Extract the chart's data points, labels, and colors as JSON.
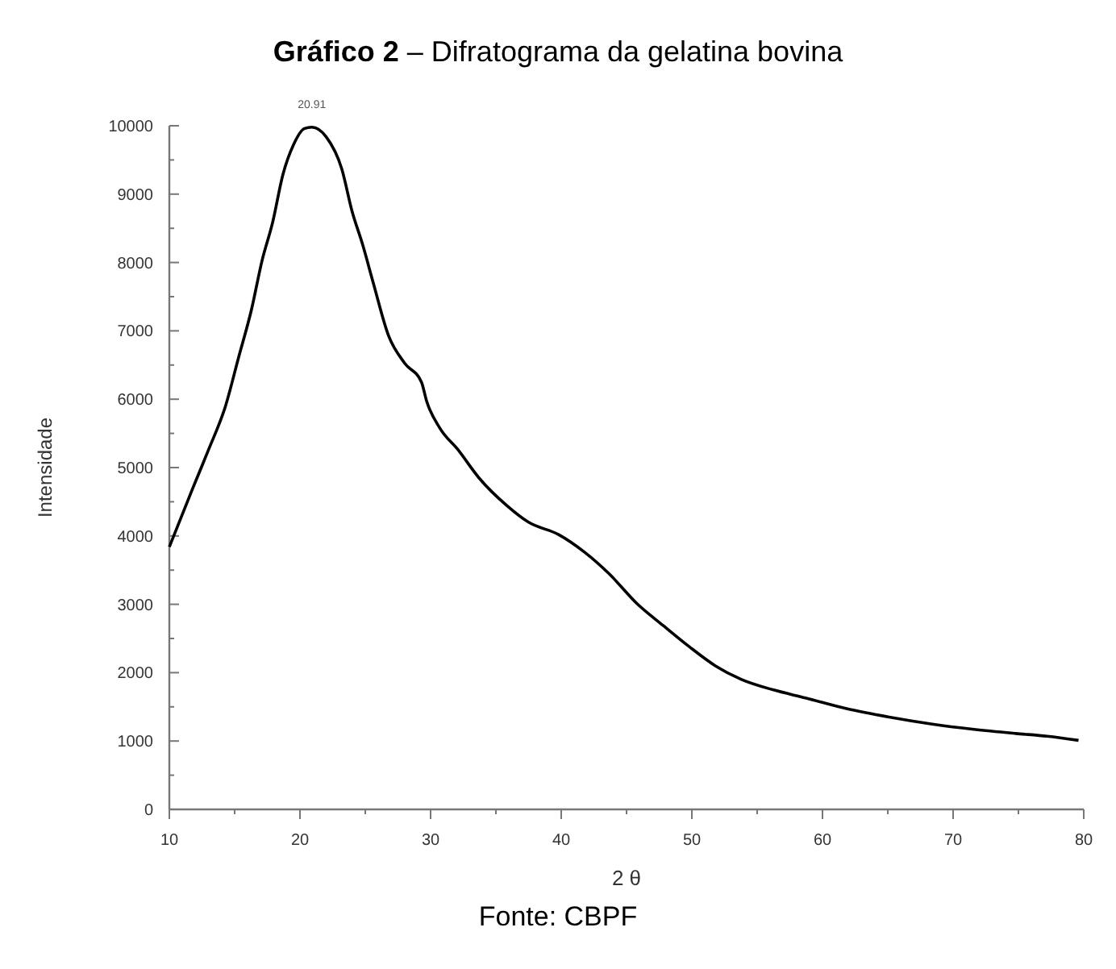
{
  "chart_data": {
    "type": "line",
    "title": "Gráfico 2 – Difratograma da gelatina bovina",
    "xlabel": "2 θ",
    "ylabel": "Intensidade",
    "x": [
      10,
      11.8,
      13,
      14.3,
      15.3,
      16.3,
      17.1,
      17.9,
      18.7,
      19.5,
      20.35,
      20.91,
      22,
      23.2,
      24,
      24.8,
      25.6,
      26.8,
      28,
      29.3,
      29.7,
      30.7,
      32.1,
      33.7,
      35.8,
      37.5,
      39.8,
      41.8,
      43.7,
      45.8,
      47.8,
      49.8,
      51.8,
      53.8,
      56.2,
      58.7,
      61.9,
      65.1,
      68.3,
      71.6,
      74.8,
      77.2,
      79.6
    ],
    "series": [
      {
        "color": "#000000",
        "values": [
          3840,
          4700,
          5260,
          5900,
          6610,
          7320,
          8030,
          8580,
          9290,
          9720,
          9960,
          9980,
          9840,
          9370,
          8740,
          8260,
          7710,
          6920,
          6530,
          6250,
          5970,
          5580,
          5260,
          4850,
          4450,
          4200,
          4020,
          3760,
          3440,
          3010,
          2690,
          2380,
          2100,
          1900,
          1750,
          1630,
          1470,
          1350,
          1250,
          1170,
          1110,
          1070,
          1010
        ]
      }
    ],
    "xlim": [
      10,
      80
    ],
    "xticks": [
      10,
      {
        "value": 15,
        "label": null
      },
      20,
      {
        "value": 25,
        "label": null
      },
      30,
      {
        "value": 35,
        "label": null
      },
      40,
      {
        "value": 45,
        "label": null
      },
      50,
      {
        "value": 55,
        "label": null
      },
      60,
      {
        "value": 65,
        "label": null
      },
      70,
      {
        "value": 75,
        "label": null
      },
      80
    ],
    "ylim": [
      0,
      10000
    ],
    "yticks": [
      0,
      {
        "value": 500,
        "label": null
      },
      1000,
      {
        "value": 1500,
        "label": null
      },
      2000,
      {
        "value": 2500,
        "label": null
      },
      3000,
      {
        "value": 3500,
        "label": null
      },
      4000,
      {
        "value": 4500,
        "label": null
      },
      5000,
      {
        "value": 5500,
        "label": null
      },
      6000,
      {
        "value": 6500,
        "label": null
      },
      7000,
      {
        "value": 7500,
        "label": null
      },
      8000,
      {
        "value": 8500,
        "label": null
      },
      9000,
      {
        "value": 9500,
        "label": null
      },
      10000
    ],
    "grid": false,
    "marker": "none",
    "line_style": "solid",
    "annotations": [
      {
        "text": "20.91",
        "x": 20.91,
        "y": 9980
      },
      "Fonte: CBPF"
    ]
  }
}
